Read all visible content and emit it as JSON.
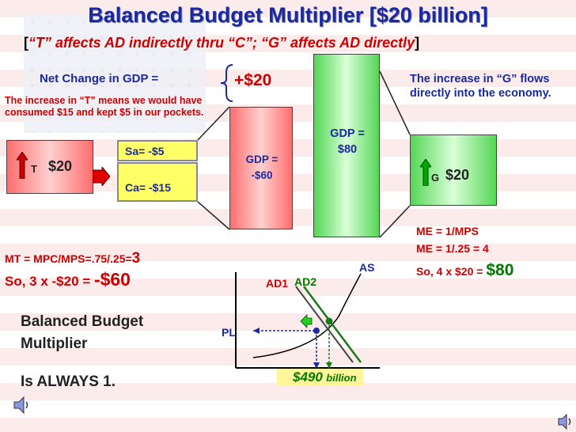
{
  "title": "Balanced Budget Multiplier [$20 billion]",
  "subtitle": {
    "open_bracket": "[",
    "text": "“T” affects AD indirectly thru “C”; “G” affects AD directly",
    "close_bracket": "]"
  },
  "net_change": {
    "label": "Net Change in GDP =",
    "value": "+$20"
  },
  "tax_note": "The increase in “T” means we would have consumed $15 and  kept  $5  in our pockets.",
  "gov_note": "The increase in “G” flows directly  into the economy.",
  "tax_box": {
    "label": "T",
    "value": "$20"
  },
  "sa": "Sa= -$5",
  "ca": "Ca= -$15",
  "gdp_tax": {
    "label": "GDP =",
    "value": "-$60"
  },
  "gdp_gov": {
    "label": "GDP =",
    "value": "$80"
  },
  "g_box": {
    "label": "G",
    "value": "$20"
  },
  "tax_multiplier": {
    "line1_text": "MT = MPC/MPS=.75/.25=",
    "line1_value": "3",
    "line2_text": "So, 3 x -$20 =",
    "line2_value": "-$60"
  },
  "expenditure_multiplier": {
    "line1": "ME = 1/MPS",
    "line2": "ME = 1/.25 = 4",
    "line3_text": "So, 4 x $20 =",
    "line3_value": "$80"
  },
  "conclusion": {
    "line1": "Balanced Budget",
    "line2": "Multiplier",
    "line3": "Is ALWAYS 1."
  },
  "graph": {
    "as_label": "AS",
    "ad1_label": "AD1",
    "ad2_label": "AD2",
    "pl_label": "PL",
    "output_value": "$490",
    "output_unit": "billion"
  },
  "colors": {
    "title_blue": "#1a2a9e",
    "red": "#cc0000",
    "green": "#007a00"
  },
  "icons": [
    "up-arrow-icon",
    "right-arrow-icon",
    "speaker-icon"
  ]
}
